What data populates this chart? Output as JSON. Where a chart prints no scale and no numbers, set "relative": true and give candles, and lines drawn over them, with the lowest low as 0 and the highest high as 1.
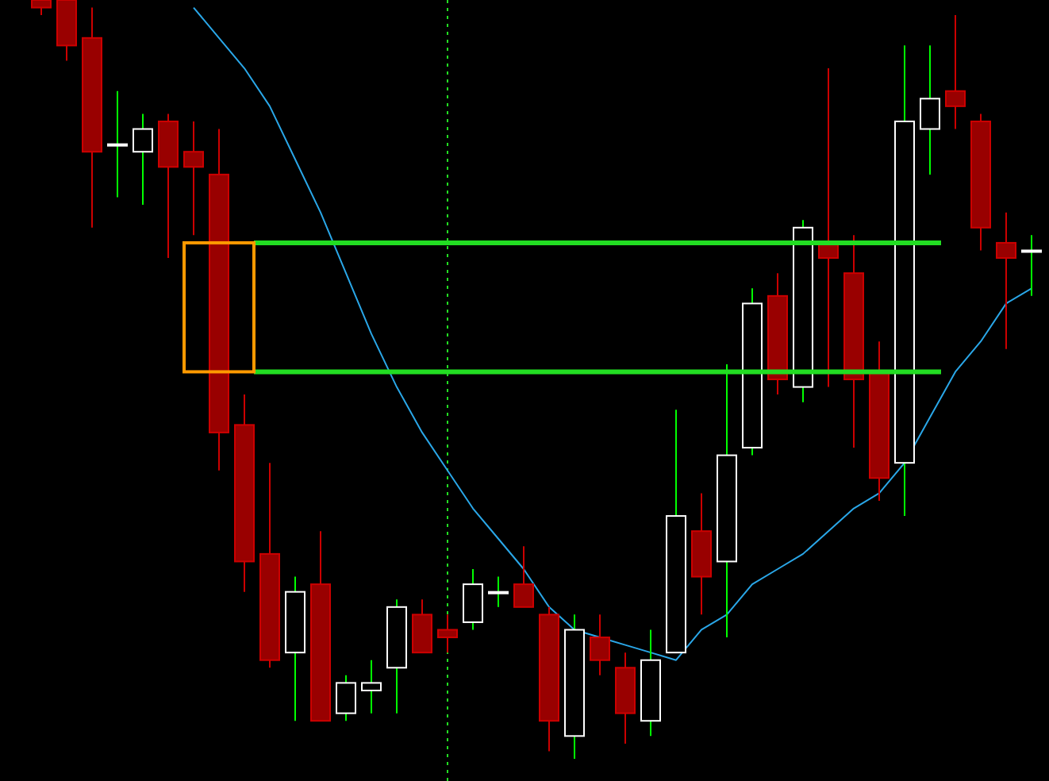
{
  "chart_data": {
    "type": "candlestick",
    "relative": true,
    "categories": [
      null,
      null,
      null,
      null,
      null,
      null,
      null,
      null,
      null,
      null,
      null,
      null,
      null,
      null,
      null,
      null,
      null,
      null,
      null,
      null,
      null,
      null,
      null,
      null,
      null,
      null,
      null,
      null,
      null,
      null,
      null,
      null,
      null,
      null,
      null,
      null,
      null,
      null,
      null,
      null
    ],
    "ohlc": [
      [
        1.0,
        1.0,
        0.98,
        0.99
      ],
      [
        1.0,
        1.0,
        0.92,
        0.94
      ],
      [
        0.95,
        0.99,
        0.7,
        0.8
      ],
      [
        0.81,
        0.88,
        0.74,
        0.81
      ],
      [
        0.8,
        0.85,
        0.73,
        0.83
      ],
      [
        0.84,
        0.85,
        0.66,
        0.78
      ],
      [
        0.8,
        0.84,
        0.69,
        0.78
      ],
      [
        0.77,
        0.83,
        0.38,
        0.43
      ],
      [
        0.44,
        0.48,
        0.22,
        0.26
      ],
      [
        0.27,
        0.39,
        0.12,
        0.13
      ],
      [
        0.14,
        0.24,
        0.05,
        0.22
      ],
      [
        0.23,
        0.3,
        0.05,
        0.05
      ],
      [
        0.06,
        0.11,
        0.05,
        0.1
      ],
      [
        0.09,
        0.13,
        0.06,
        0.1
      ],
      [
        0.12,
        0.21,
        0.06,
        0.2
      ],
      [
        0.19,
        0.21,
        0.14,
        0.14
      ],
      [
        0.17,
        0.19,
        0.14,
        0.16
      ],
      [
        0.18,
        0.25,
        0.17,
        0.23
      ],
      [
        0.22,
        0.24,
        0.2,
        0.22
      ],
      [
        0.23,
        0.28,
        0.2,
        0.2
      ],
      [
        0.19,
        0.2,
        0.01,
        0.05
      ],
      [
        0.03,
        0.19,
        0.0,
        0.17
      ],
      [
        0.16,
        0.19,
        0.11,
        0.13
      ],
      [
        0.12,
        0.14,
        0.02,
        0.06
      ],
      [
        0.05,
        0.17,
        0.03,
        0.13
      ],
      [
        0.14,
        0.46,
        0.14,
        0.32
      ],
      [
        0.3,
        0.35,
        0.19,
        0.24
      ],
      [
        0.26,
        0.52,
        0.16,
        0.4
      ],
      [
        0.41,
        0.62,
        0.4,
        0.6
      ],
      [
        0.61,
        0.64,
        0.48,
        0.5
      ],
      [
        0.49,
        0.71,
        0.47,
        0.7
      ],
      [
        0.68,
        0.91,
        0.49,
        0.66
      ],
      [
        0.64,
        0.69,
        0.41,
        0.5
      ],
      [
        0.51,
        0.55,
        0.34,
        0.37
      ],
      [
        0.39,
        0.94,
        0.32,
        0.84
      ],
      [
        0.83,
        0.94,
        0.77,
        0.87
      ],
      [
        0.88,
        0.98,
        0.83,
        0.86
      ],
      [
        0.84,
        0.85,
        0.67,
        0.7
      ],
      [
        0.68,
        0.72,
        0.54,
        0.66
      ],
      [
        0.67,
        0.69,
        0.61,
        0.67
      ]
    ],
    "series": [
      {
        "type": "line",
        "color": "#2aa7e8",
        "values": [
          null,
          null,
          null,
          null,
          null,
          null,
          0.99,
          0.95,
          0.91,
          0.86,
          0.79,
          0.72,
          0.64,
          0.56,
          0.49,
          0.43,
          0.38,
          0.33,
          0.29,
          0.25,
          0.2,
          0.17,
          0.16,
          0.15,
          0.14,
          0.13,
          0.17,
          0.19,
          0.23,
          0.25,
          0.27,
          0.3,
          0.33,
          0.35,
          0.39,
          0.45,
          0.51,
          0.55,
          0.6,
          0.62
        ]
      }
    ],
    "ref_lines": [
      {
        "axis": "y",
        "value": 0.68,
        "color": "#22dd22",
        "line_style": "solid"
      },
      {
        "axis": "y",
        "value": 0.51,
        "color": "#22dd22",
        "line_style": "solid"
      }
    ]
  }
}
